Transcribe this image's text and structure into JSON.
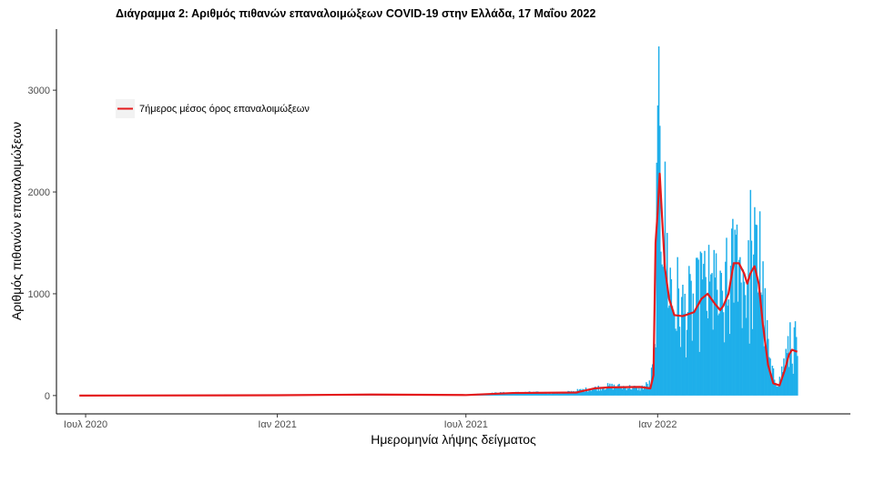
{
  "chart_data": {
    "type": "bar",
    "title": "Διάγραμμα 2: Αριθμός πιθανών επαναλοιμώξεων COVID-19 στην Ελλάδα, 17 Μαΐου 2022",
    "xlabel": "Ημερομηνία λήψης δείγματος",
    "ylabel": "Αριθμός πιθανών επαναλοιμώξεων",
    "x_range": [
      "2020-06-03",
      "2022-07-05"
    ],
    "ylim": [
      -180,
      3600
    ],
    "y_ticks": [
      0,
      1000,
      2000,
      3000
    ],
    "y_tick_labels": [
      "0",
      "1000",
      "2000",
      "3000"
    ],
    "x_ticks": [
      "2020-07-01",
      "2021-01-01",
      "2021-07-01",
      "2022-01-01"
    ],
    "x_tick_labels": [
      "Ιουλ 2020",
      "Ιαν 2021",
      "Ιουλ 2021",
      "Ιαν 2022"
    ],
    "grid": false,
    "legend": {
      "position": "top-left",
      "entries": [
        {
          "label": "7ήμερος μέσος όρος επαναλοιμώξεων",
          "color": "#e41a1c"
        }
      ]
    },
    "bar_color": "#1fafea",
    "line_color": "#e41a1c",
    "daily_series": {
      "name": "",
      "note_rendering": "daily bars",
      "start": "2020-06-25",
      "end": "2022-05-15",
      "anchors": [
        [
          "2020-06-25",
          0
        ],
        [
          "2020-12-01",
          2
        ],
        [
          "2021-03-01",
          5
        ],
        [
          "2021-04-01",
          10
        ],
        [
          "2021-05-15",
          6
        ],
        [
          "2021-07-01",
          8
        ],
        [
          "2021-08-01",
          25
        ],
        [
          "2021-09-01",
          30
        ],
        [
          "2021-10-01",
          25
        ],
        [
          "2021-10-25",
          60
        ],
        [
          "2021-11-15",
          90
        ],
        [
          "2021-12-01",
          85
        ],
        [
          "2021-12-15",
          70
        ],
        [
          "2021-12-25",
          120
        ],
        [
          "2021-12-29",
          400
        ],
        [
          "2022-01-01",
          2200
        ],
        [
          "2022-01-03",
          2400
        ],
        [
          "2022-01-06",
          1900
        ],
        [
          "2022-01-10",
          1300
        ],
        [
          "2022-01-16",
          900
        ],
        [
          "2022-01-25",
          800
        ],
        [
          "2022-02-05",
          850
        ],
        [
          "2022-02-15",
          1000
        ],
        [
          "2022-02-25",
          950
        ],
        [
          "2022-03-05",
          800
        ],
        [
          "2022-03-10",
          950
        ],
        [
          "2022-03-15",
          1250
        ],
        [
          "2022-03-25",
          1200
        ],
        [
          "2022-03-30",
          1000
        ],
        [
          "2022-04-05",
          1300
        ],
        [
          "2022-04-10",
          1200
        ],
        [
          "2022-04-15",
          600
        ],
        [
          "2022-04-20",
          200
        ],
        [
          "2022-04-28",
          150
        ],
        [
          "2022-05-03",
          350
        ],
        [
          "2022-05-10",
          450
        ],
        [
          "2022-05-15",
          430
        ]
      ],
      "spikes": [
        [
          "2022-01-01",
          2850
        ],
        [
          "2022-01-02",
          3430
        ],
        [
          "2022-01-03",
          2650
        ],
        [
          "2022-03-31",
          2020
        ],
        [
          "2022-04-09",
          1810
        ],
        [
          "2022-03-18",
          1680
        ],
        [
          "2022-03-08",
          1550
        ],
        [
          "2022-01-20",
          1360
        ],
        [
          "2022-02-12",
          1400
        ],
        [
          "2022-02-24",
          1430
        ],
        [
          "2022-05-08",
          720
        ],
        [
          "2022-05-13",
          730
        ]
      ]
    },
    "rolling_mean_7d": {
      "name": "7ήμερος μέσος όρος επαναλοιμώξεων",
      "x": [
        "2020-06-25",
        "2021-01-01",
        "2021-04-01",
        "2021-07-01",
        "2021-08-15",
        "2021-10-15",
        "2021-11-01",
        "2021-11-15",
        "2021-12-15",
        "2021-12-25",
        "2021-12-28",
        "2021-12-30",
        "2022-01-01",
        "2022-01-03",
        "2022-01-05",
        "2022-01-08",
        "2022-01-12",
        "2022-01-17",
        "2022-01-25",
        "2022-02-05",
        "2022-02-12",
        "2022-02-18",
        "2022-02-25",
        "2022-03-02",
        "2022-03-05",
        "2022-03-10",
        "2022-03-15",
        "2022-03-20",
        "2022-03-25",
        "2022-03-28",
        "2022-03-31",
        "2022-04-04",
        "2022-04-08",
        "2022-04-12",
        "2022-04-17",
        "2022-04-22",
        "2022-04-28",
        "2022-05-03",
        "2022-05-07",
        "2022-05-10",
        "2022-05-15"
      ],
      "y": [
        0,
        3,
        10,
        5,
        25,
        30,
        70,
        80,
        85,
        70,
        200,
        1500,
        1800,
        2180,
        1800,
        1250,
        950,
        790,
        780,
        820,
        950,
        1000,
        900,
        840,
        880,
        1000,
        1300,
        1300,
        1200,
        1100,
        1200,
        1270,
        1100,
        700,
        300,
        120,
        100,
        250,
        400,
        450,
        430
      ]
    }
  }
}
